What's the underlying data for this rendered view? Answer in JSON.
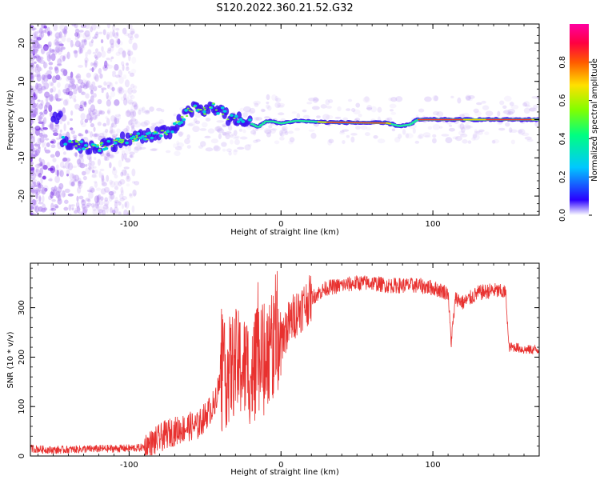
{
  "title": "S120.2022.360.21.52.G32",
  "chart_data": [
    {
      "type": "heatmap",
      "xlabel": "Height of straight line (km)",
      "ylabel": "Frequency (Hz)",
      "xlim": [
        -165,
        170
      ],
      "ylim": [
        -25,
        25
      ],
      "x_ticks": [
        -100,
        0,
        100
      ],
      "y_ticks": [
        -20,
        -10,
        0,
        10,
        20
      ],
      "colorbar": {
        "label": "Normalized spectral amplitude",
        "range": [
          0,
          1
        ],
        "ticks": [
          0.0,
          0.2,
          0.4,
          0.6,
          0.8
        ]
      },
      "ridge": [
        {
          "x": -145,
          "y": -5.5
        },
        {
          "x": -135,
          "y": -6.5
        },
        {
          "x": -125,
          "y": -7.5
        },
        {
          "x": -115,
          "y": -6.5
        },
        {
          "x": -105,
          "y": -5.5
        },
        {
          "x": -95,
          "y": -4.5
        },
        {
          "x": -85,
          "y": -4.2
        },
        {
          "x": -75,
          "y": -3.5
        },
        {
          "x": -65,
          "y": 0
        },
        {
          "x": -60,
          "y": 2.5
        },
        {
          "x": -55,
          "y": 3
        },
        {
          "x": -50,
          "y": 2
        },
        {
          "x": -45,
          "y": 3.5
        },
        {
          "x": -40,
          "y": 2.5
        },
        {
          "x": -35,
          "y": 0.5
        },
        {
          "x": -30,
          "y": 0
        },
        {
          "x": -25,
          "y": -0.5
        },
        {
          "x": -20,
          "y": -1
        },
        {
          "x": -15,
          "y": -2
        },
        {
          "x": -10,
          "y": -0.5
        },
        {
          "x": -5,
          "y": -0.5
        },
        {
          "x": 0,
          "y": -1
        },
        {
          "x": 10,
          "y": -0.3
        },
        {
          "x": 20,
          "y": -0.5
        },
        {
          "x": 30,
          "y": -0.7
        },
        {
          "x": 50,
          "y": -0.8
        },
        {
          "x": 70,
          "y": -0.9
        },
        {
          "x": 78,
          "y": -1.7
        },
        {
          "x": 85,
          "y": -1.3
        },
        {
          "x": 90,
          "y": 0
        },
        {
          "x": 110,
          "y": 0
        },
        {
          "x": 130,
          "y": 0
        },
        {
          "x": 150,
          "y": 0
        },
        {
          "x": 170,
          "y": 0
        }
      ]
    },
    {
      "type": "line",
      "xlabel": "Height of straight line (km)",
      "ylabel": "SNR (10 * v/v)",
      "xlim": [
        -165,
        170
      ],
      "ylim": [
        0,
        390
      ],
      "x_ticks": [
        -100,
        0,
        100
      ],
      "y_ticks": [
        0,
        100,
        200,
        300
      ],
      "color": "#e8312f",
      "series": [
        {
          "x": [
            -165,
            -150,
            -130,
            -110,
            -95,
            -90,
            -85,
            -80,
            -75,
            -70,
            -65,
            -60,
            -55,
            -50,
            -45,
            -40,
            -35,
            -30,
            -25,
            -20,
            -15,
            -10,
            -5,
            0,
            5,
            10,
            15,
            20,
            25,
            30,
            40,
            50,
            60,
            70,
            80,
            90,
            100,
            105,
            110,
            112,
            115,
            120,
            125,
            130,
            140,
            148,
            150,
            155,
            160,
            170
          ],
          "y": [
            15,
            12,
            14,
            15,
            16,
            18,
            25,
            35,
            45,
            50,
            55,
            60,
            60,
            80,
            100,
            150,
            170,
            190,
            180,
            170,
            195,
            210,
            220,
            240,
            265,
            290,
            305,
            320,
            330,
            340,
            345,
            350,
            350,
            345,
            345,
            345,
            340,
            335,
            330,
            230,
            320,
            310,
            320,
            330,
            335,
            330,
            220,
            220,
            215,
            215
          ]
        }
      ]
    }
  ]
}
